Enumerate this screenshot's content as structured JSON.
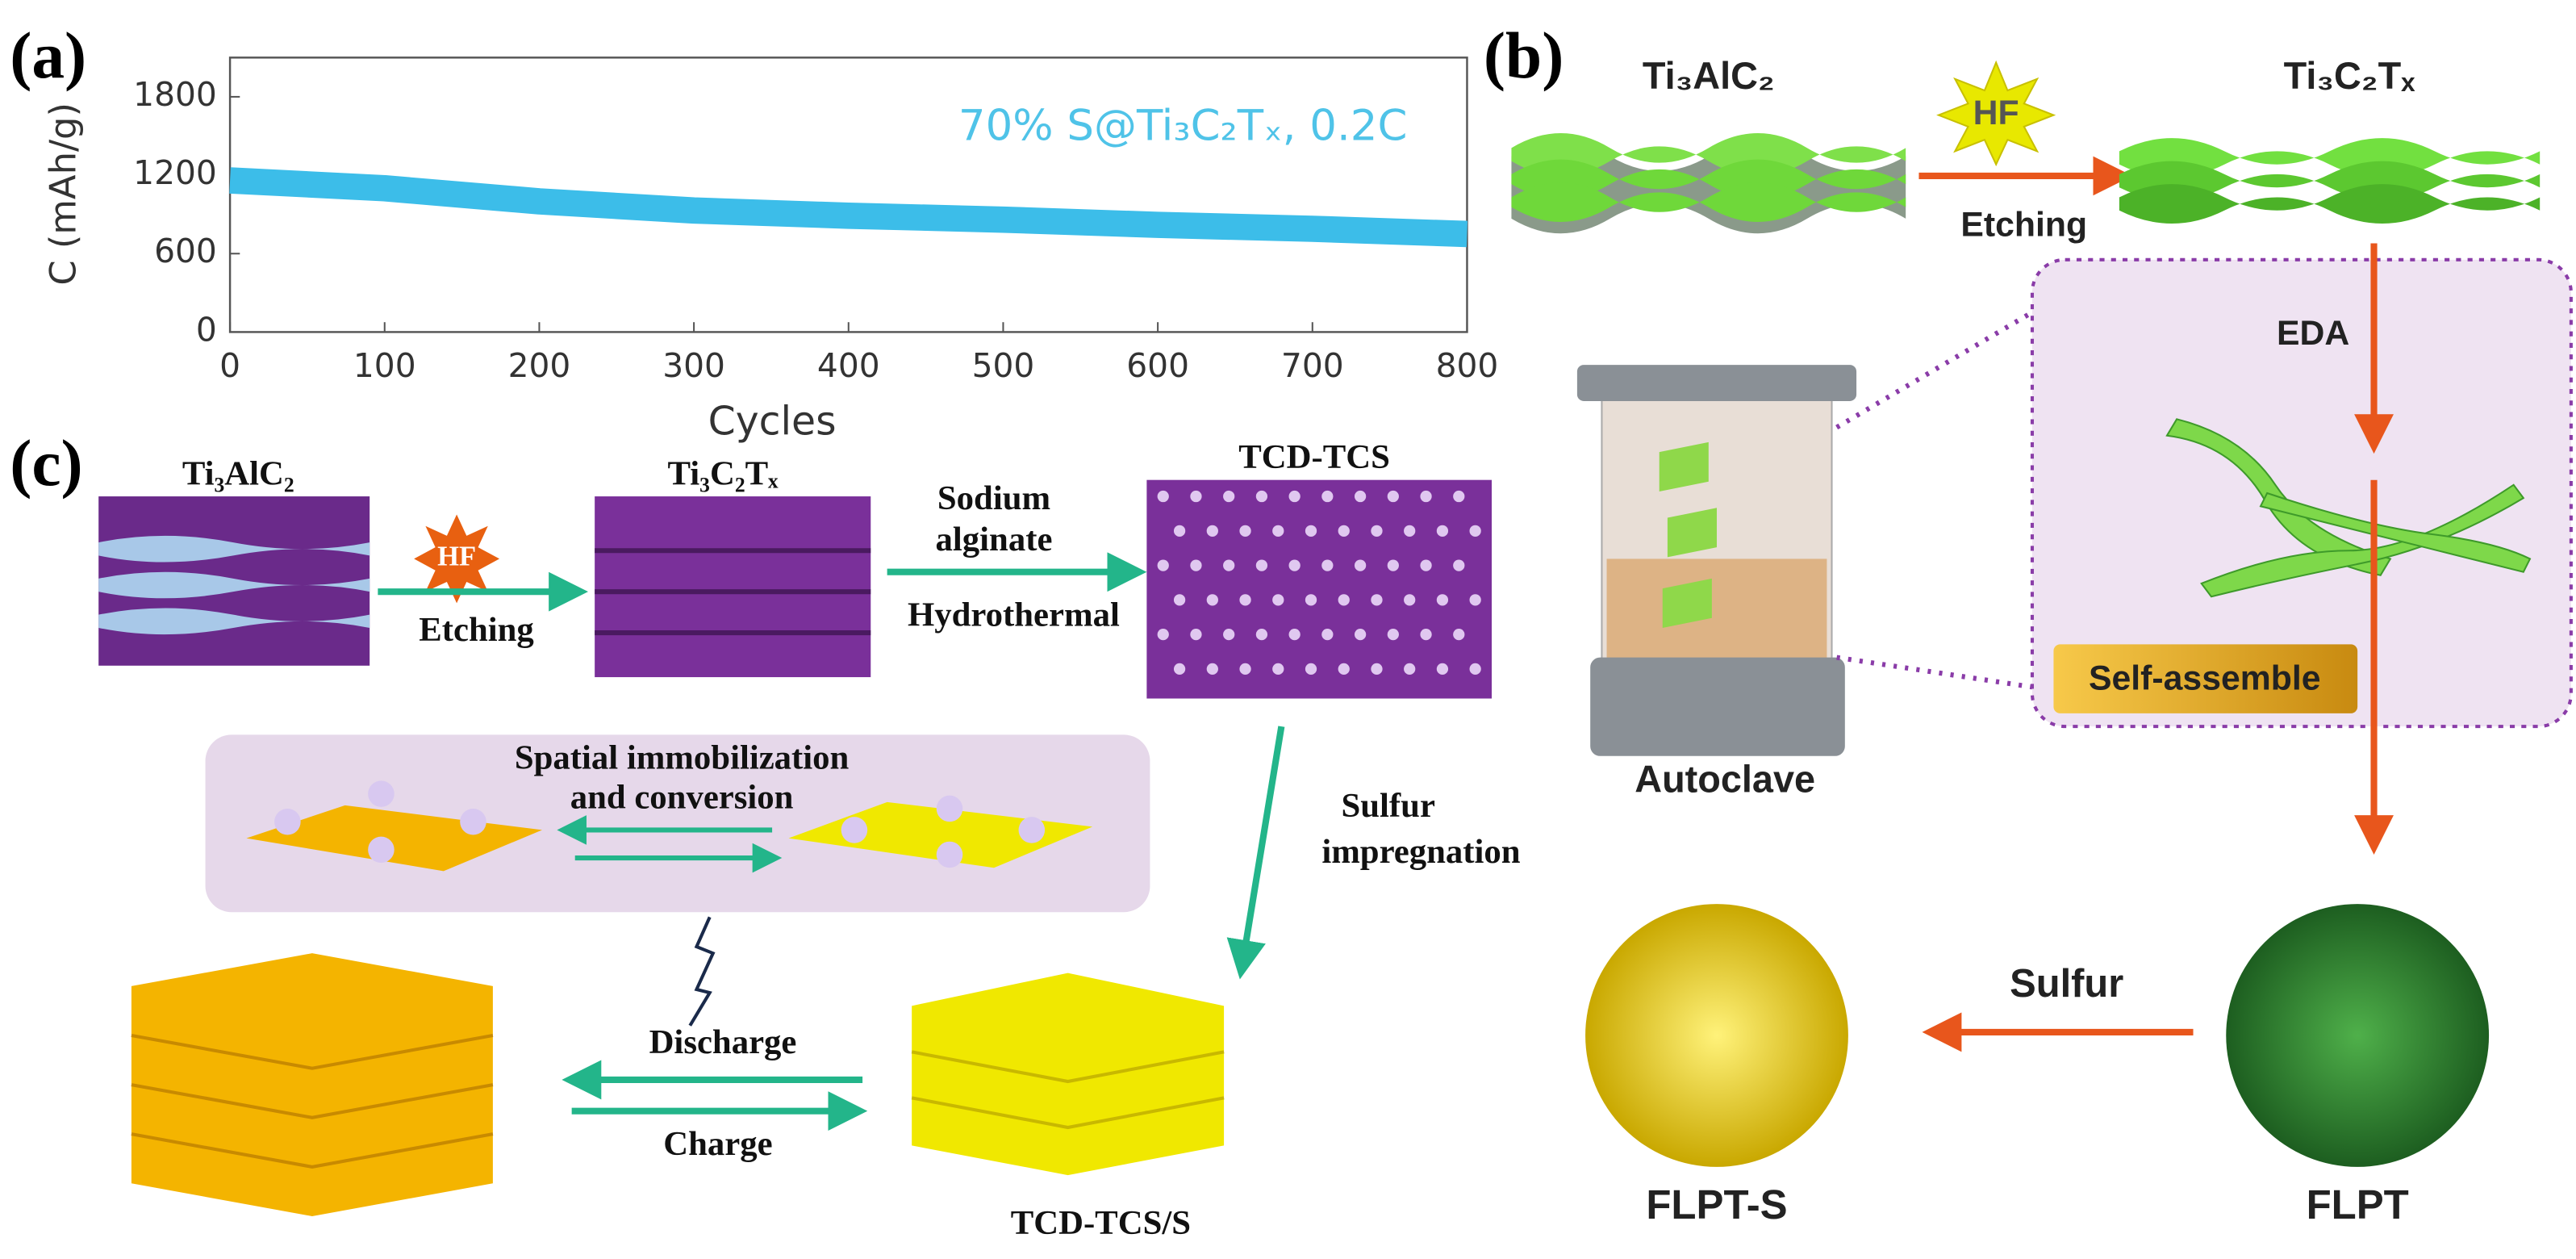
{
  "chart_data": {
    "type": "line",
    "panel_label": "(a)",
    "annotation": "70% S@Ti₃C₂Tₓ, 0.2C",
    "x_label": "Cycles",
    "y_label": "C (mAh/g)",
    "x": [
      0,
      100,
      200,
      300,
      400,
      500,
      600,
      700,
      800
    ],
    "series": [
      {
        "name": "70% S@Ti₃C₂Tₓ, 0.2C",
        "color": "#3cbde9",
        "values": [
          1160,
          1100,
          1000,
          930,
          890,
          860,
          820,
          790,
          750
        ]
      }
    ],
    "xlim": [
      0,
      800
    ],
    "xticks": [
      0,
      100,
      200,
      300,
      400,
      500,
      600,
      700,
      800
    ],
    "ylim": [
      0,
      2100
    ],
    "yticks": [
      0,
      600,
      1200,
      1800
    ],
    "grid": false
  },
  "panel_b": {
    "label": "(b)",
    "start": "Ti₃AlC₂",
    "etchant": "HF",
    "step1": "Etching",
    "product": "Ti₃C₂Tₓ",
    "step2": "EDA",
    "vessel": "Autoclave",
    "step3": "Self-assemble",
    "step4": "Sulfur",
    "final": "FLPT-S",
    "intermediate": "FLPT"
  },
  "panel_c": {
    "label": "(c)",
    "start": "Ti₃AlC₂",
    "etchant": "HF",
    "step1": "Etching",
    "product": "Ti₃C₂Tₓ",
    "step2": [
      "Sodium",
      "alginate"
    ],
    "step2b": "Hydrothermal",
    "composite": "TCD-TCS",
    "mechanism": [
      "Spatial immobilization",
      "and conversion"
    ],
    "step3": [
      "Sulfur",
      "impregnation"
    ],
    "discharge": "Discharge",
    "charge": "Charge",
    "final": "TCD-TCS/S"
  }
}
